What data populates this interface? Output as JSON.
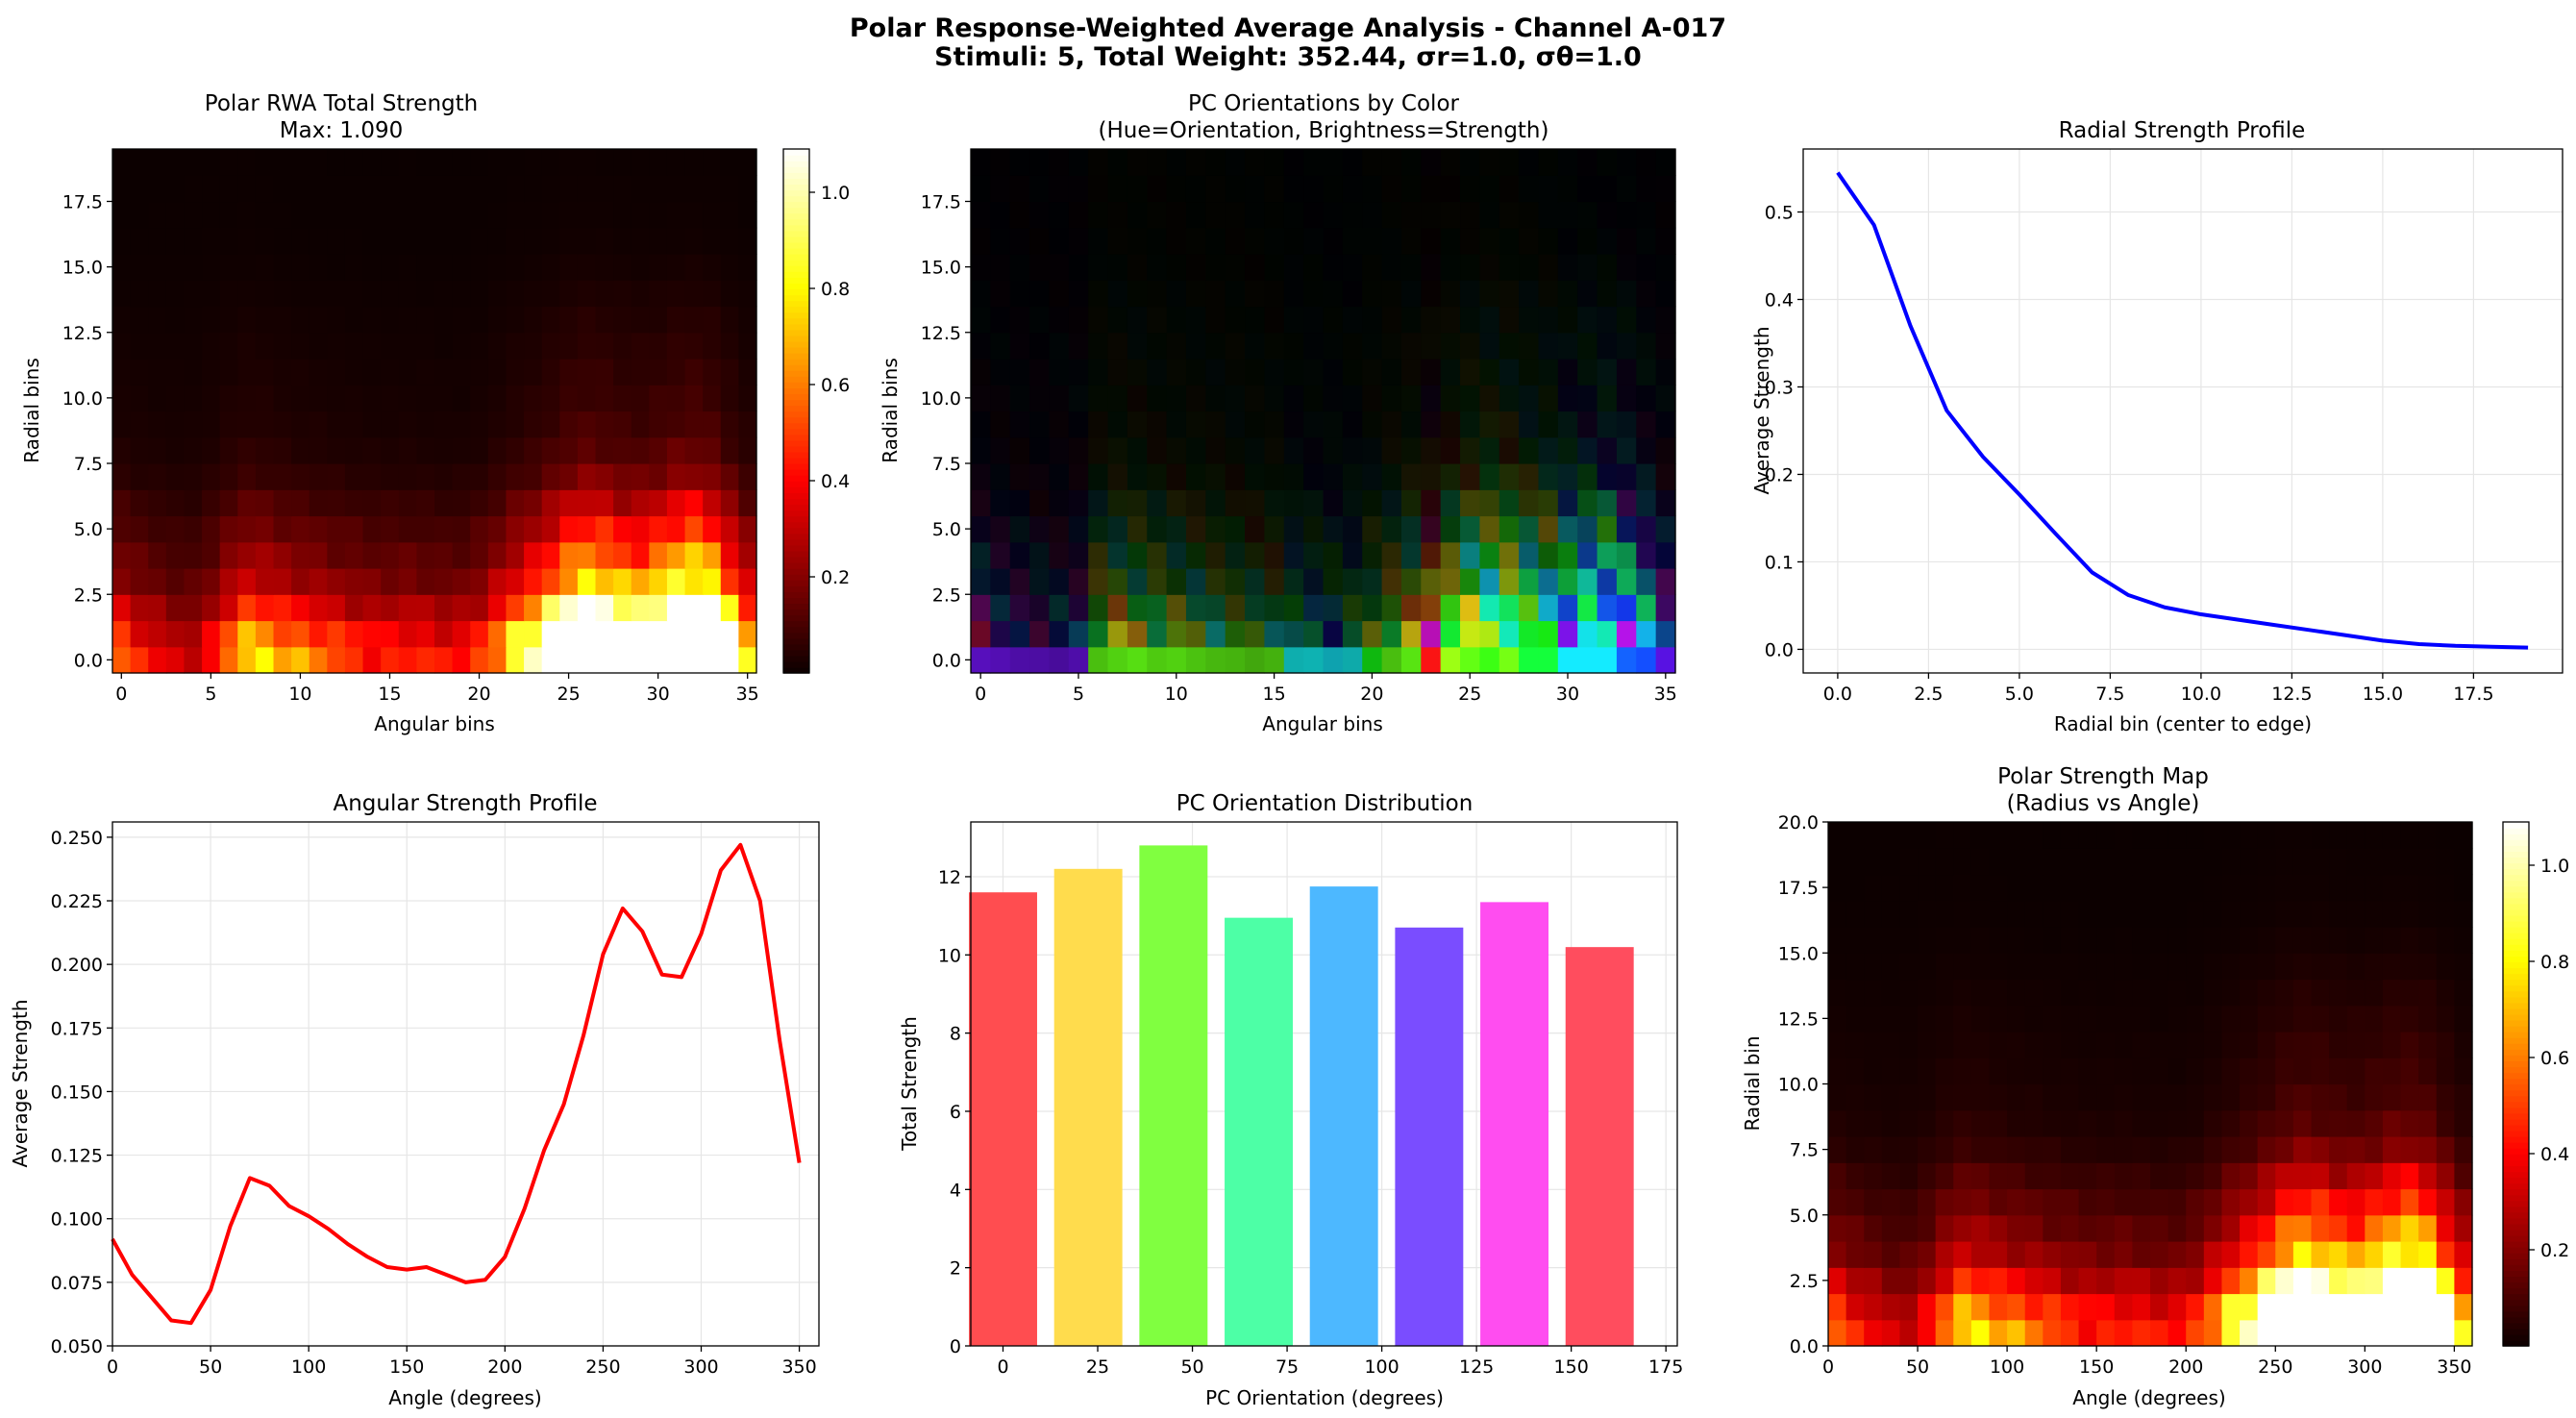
{
  "suptitle": {
    "line1": "Polar Response-Weighted Average Analysis - Channel A-017",
    "line2": "Stimuli: 5, Total Weight: 352.44, σr=1.0, σθ=1.0"
  },
  "colors": {
    "hot_colormap": [
      "#0b0000",
      "#e60000",
      "#ffe000",
      "#ffffff"
    ],
    "radial_line": "#0000ff",
    "angular_line": "#ff0000",
    "grid": "#e6e6e6"
  },
  "chart_data": [
    {
      "type": "heatmap",
      "title": "Polar RWA Total Strength",
      "subtitle": "Max: 1.090",
      "xlabel": "Angular bins",
      "ylabel": "Radial bins",
      "x_range": [
        -0.5,
        35.5
      ],
      "y_range": [
        -0.5,
        19.5
      ],
      "xticks": [
        0,
        5,
        10,
        15,
        20,
        25,
        30,
        35
      ],
      "yticks": [
        0.0,
        2.5,
        5.0,
        7.5,
        10.0,
        12.5,
        15.0,
        17.5
      ],
      "n_angular": 36,
      "n_radial": 20,
      "colorbar": {
        "ticks": [
          0.2,
          0.4,
          0.6,
          0.8,
          1.0
        ],
        "range": [
          0,
          1.09
        ]
      },
      "max": 1.09,
      "angular_profile": [
        0.092,
        0.078,
        0.069,
        0.06,
        0.059,
        0.072,
        0.097,
        0.116,
        0.113,
        0.105,
        0.101,
        0.096,
        0.09,
        0.085,
        0.081,
        0.08,
        0.081,
        0.078,
        0.075,
        0.076,
        0.085,
        0.104,
        0.127,
        0.145,
        0.172,
        0.204,
        0.222,
        0.213,
        0.196,
        0.195,
        0.212,
        0.237,
        0.247,
        0.225,
        0.17,
        0.122
      ],
      "radial_profile": [
        0.545,
        0.485,
        0.37,
        0.273,
        0.22,
        0.177,
        0.132,
        0.088,
        0.062,
        0.048,
        0.04,
        0.034,
        0.028,
        0.022,
        0.016,
        0.01,
        0.006,
        0.004,
        0.003,
        0.002
      ],
      "grid": false
    },
    {
      "type": "heatmap",
      "title": "PC Orientations by Color",
      "subtitle": "(Hue=Orientation, Brightness=Strength)",
      "xlabel": "Angular bins",
      "ylabel": "Radial bins",
      "x_range": [
        -0.5,
        35.5
      ],
      "y_range": [
        -0.5,
        19.5
      ],
      "xticks": [
        0,
        5,
        10,
        15,
        20,
        25,
        30,
        35
      ],
      "yticks": [
        0.0,
        2.5,
        5.0,
        7.5,
        10.0,
        12.5,
        15.0,
        17.5
      ],
      "inner_ring_hues_deg": [
        265,
        265,
        265,
        265,
        265,
        265,
        100,
        100,
        100,
        100,
        100,
        100,
        100,
        100,
        100,
        100,
        180,
        180,
        185,
        180,
        120,
        100,
        100,
        0,
        85,
        100,
        110,
        95,
        130,
        130,
        185,
        185,
        185,
        220,
        225,
        260
      ],
      "grid": false
    },
    {
      "type": "line",
      "title": "Radial Strength Profile",
      "xlabel": "Radial bin (center to edge)",
      "ylabel": "Average Strength",
      "x": [
        0,
        1,
        2,
        3,
        4,
        5,
        6,
        7,
        8,
        9,
        10,
        11,
        12,
        13,
        14,
        15,
        16,
        17,
        18,
        19
      ],
      "y": [
        0.545,
        0.485,
        0.37,
        0.273,
        0.22,
        0.177,
        0.132,
        0.088,
        0.062,
        0.048,
        0.04,
        0.034,
        0.028,
        0.022,
        0.016,
        0.01,
        0.006,
        0.004,
        0.003,
        0.002
      ],
      "xlim": [
        -0.95,
        19.95
      ],
      "ylim": [
        -0.027,
        0.572
      ],
      "xticks": [
        0.0,
        2.5,
        5.0,
        7.5,
        10.0,
        12.5,
        15.0,
        17.5
      ],
      "yticks": [
        0.0,
        0.1,
        0.2,
        0.3,
        0.4,
        0.5
      ],
      "x_tick_decimals": 1,
      "y_tick_decimals": 1,
      "color": "#0000ff",
      "grid": true
    },
    {
      "type": "line",
      "title": "Angular Strength Profile",
      "xlabel": "Angle (degrees)",
      "ylabel": "Average Strength",
      "x": [
        0,
        10,
        20,
        30,
        40,
        50,
        60,
        70,
        80,
        90,
        100,
        110,
        120,
        130,
        140,
        150,
        160,
        170,
        180,
        190,
        200,
        210,
        220,
        230,
        240,
        250,
        260,
        270,
        280,
        290,
        300,
        310,
        320,
        330,
        340,
        350
      ],
      "y": [
        0.092,
        0.078,
        0.069,
        0.06,
        0.059,
        0.072,
        0.097,
        0.116,
        0.113,
        0.105,
        0.101,
        0.096,
        0.09,
        0.085,
        0.081,
        0.08,
        0.081,
        0.078,
        0.075,
        0.076,
        0.085,
        0.104,
        0.127,
        0.145,
        0.172,
        0.204,
        0.222,
        0.213,
        0.196,
        0.195,
        0.212,
        0.237,
        0.247,
        0.225,
        0.17,
        0.122
      ],
      "xlim": [
        0,
        360
      ],
      "ylim": [
        0.05,
        0.256
      ],
      "xticks": [
        0,
        50,
        100,
        150,
        200,
        250,
        300,
        350
      ],
      "yticks": [
        0.05,
        0.075,
        0.1,
        0.125,
        0.15,
        0.175,
        0.2,
        0.225,
        0.25
      ],
      "x_tick_decimals": 0,
      "y_tick_decimals": 3,
      "color": "#ff0000",
      "grid": true
    },
    {
      "type": "bar",
      "title": "PC Orientation Distribution",
      "xlabel": "PC Orientation (degrees)",
      "ylabel": "Total Strength",
      "x": [
        0,
        22.5,
        45,
        67.5,
        90,
        112.5,
        135,
        157.5
      ],
      "values": [
        11.6,
        12.2,
        12.8,
        10.95,
        11.75,
        10.7,
        11.35,
        10.2
      ],
      "bar_colors": [
        "#ff4d50",
        "#ffdc4d",
        "#80ff40",
        "#4dffa6",
        "#4db8ff",
        "#7a4dff",
        "#ff4df0",
        "#ff4d5e"
      ],
      "xlim": [
        -8.5,
        178
      ],
      "ylim": [
        0,
        13.4
      ],
      "xticks": [
        0,
        25,
        50,
        75,
        100,
        125,
        150,
        175
      ],
      "yticks": [
        0,
        2,
        4,
        6,
        8,
        10,
        12
      ],
      "grid": true
    },
    {
      "type": "heatmap",
      "title": "Polar Strength Map",
      "subtitle": "(Radius vs Angle)",
      "xlabel": "Angle (degrees)",
      "ylabel": "Radial bin",
      "x_range": [
        0,
        360
      ],
      "y_range": [
        0,
        20
      ],
      "xticks": [
        0,
        50,
        100,
        150,
        200,
        250,
        300,
        350
      ],
      "yticks": [
        0.0,
        2.5,
        5.0,
        7.5,
        10.0,
        12.5,
        15.0,
        17.5,
        20.0
      ],
      "colorbar": {
        "ticks": [
          0.2,
          0.4,
          0.6,
          0.8,
          1.0
        ],
        "range": [
          0,
          1.09
        ]
      },
      "grid": false
    }
  ]
}
